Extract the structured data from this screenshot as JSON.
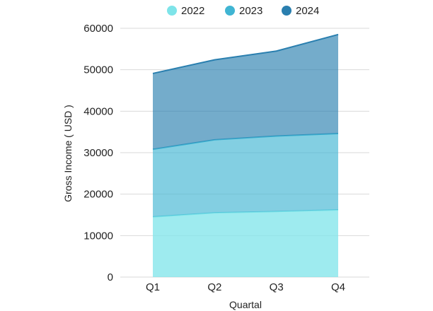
{
  "chart_data": {
    "type": "area",
    "stacked": true,
    "categories": [
      "Q1",
      "Q2",
      "Q3",
      "Q4"
    ],
    "series": [
      {
        "name": "2022",
        "values": [
          14500,
          15500,
          15800,
          16200
        ],
        "color": "#7EE4E9"
      },
      {
        "name": "2023",
        "values": [
          16300,
          17600,
          18200,
          18400
        ],
        "color": "#40B5D3"
      },
      {
        "name": "2024",
        "values": [
          18300,
          19300,
          20500,
          23900
        ],
        "color": "#2A7FAF"
      }
    ],
    "ylim": [
      0,
      60000
    ],
    "yticks": [
      "0",
      "10000",
      "20000",
      "30000",
      "40000",
      "50000",
      "60000"
    ],
    "ytick_values": [
      0,
      10000,
      20000,
      30000,
      40000,
      50000,
      60000
    ],
    "xlabel": "Quartal",
    "ylabel": "Gross Income ( USD )",
    "title": "",
    "grid": true,
    "legend_position": "top"
  }
}
